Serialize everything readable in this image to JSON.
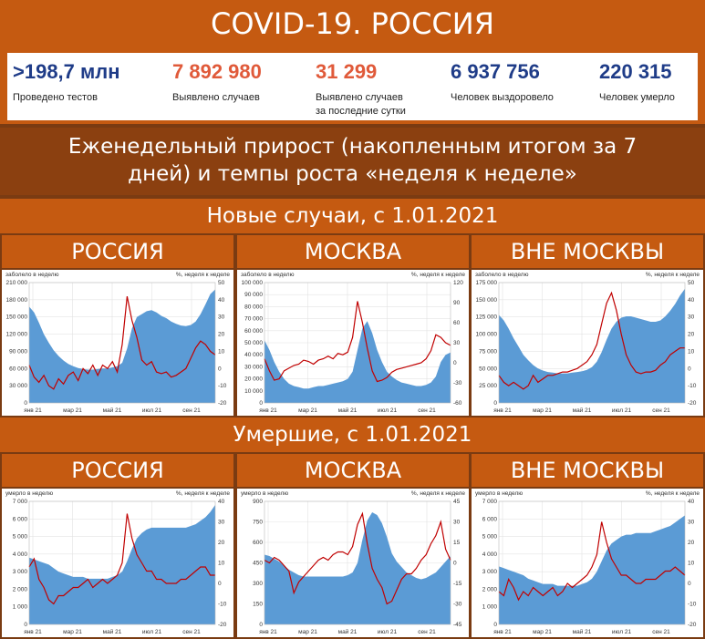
{
  "header": {
    "title": "COVID-19. РОССИЯ"
  },
  "stats": [
    {
      "value": ">198,7 млн",
      "label": "Проведено тестов",
      "color": "#1f3c88"
    },
    {
      "value": "7 892 980",
      "label": "Выявлено случаев",
      "color": "#e05a3a"
    },
    {
      "value": "31 299",
      "label": "Выявлено случаев за последние сутки",
      "label_line1": "Выявлено случаев",
      "label_line2": "за последние сутки",
      "color": "#e05a3a"
    },
    {
      "value": "6 937 756",
      "label": "Человек выздоровело",
      "color": "#1f3c88"
    },
    {
      "value": "220 315",
      "label": "Человек умерло",
      "color": "#1f3c88"
    }
  ],
  "subtitle": {
    "line1": "Еженедельный прирост (накопленным итогом за 7",
    "line2": "дней) и темпы роста «неделя к неделе»"
  },
  "sections": {
    "cases": "Новые случаи, с 1.01.2021",
    "deaths": "Умершие, с 1.01.2021"
  },
  "colors": {
    "area": "#5b9bd5",
    "line": "#c00000",
    "band": "#c55a11",
    "dark": "#7a3b12"
  },
  "chart_data": [
    {
      "type": "area+line",
      "panel": "РОССИЯ",
      "group": "cases",
      "ylabel": "заболело в неделю",
      "y2label": "%, неделя к неделе",
      "ylim": [
        0,
        210000
      ],
      "yticks": [
        0,
        30000,
        60000,
        90000,
        120000,
        150000,
        180000,
        210000
      ],
      "ytick_labels": [
        "0",
        "30 000",
        "60 000",
        "90 000",
        "120 000",
        "150 000",
        "180 000",
        "210 000"
      ],
      "y2lim": [
        -20,
        50
      ],
      "y2ticks": [
        -20,
        -10,
        0,
        10,
        20,
        30,
        40,
        50
      ],
      "xtick_labels": [
        "янв 21",
        "мар 21",
        "май 21",
        "июл 21",
        "сен 21"
      ],
      "series": [
        {
          "kind": "area",
          "values": [
            168000,
            158000,
            140000,
            120000,
            105000,
            92000,
            82000,
            74000,
            68000,
            64000,
            61000,
            59000,
            58000,
            58000,
            59000,
            60000,
            60000,
            62000,
            64000,
            70000,
            95000,
            130000,
            150000,
            155000,
            160000,
            162000,
            158000,
            152000,
            148000,
            142000,
            138000,
            135000,
            134000,
            136000,
            142000,
            155000,
            172000,
            190000,
            198000
          ]
        },
        {
          "kind": "line",
          "values": [
            2,
            -5,
            -8,
            -4,
            -10,
            -12,
            -6,
            -9,
            -4,
            -2,
            -7,
            0,
            -3,
            2,
            -4,
            2,
            0,
            4,
            -2,
            14,
            42,
            28,
            18,
            5,
            2,
            4,
            -2,
            -3,
            -2,
            -5,
            -4,
            -2,
            0,
            6,
            12,
            16,
            14,
            10,
            8
          ]
        }
      ]
    },
    {
      "type": "area+line",
      "panel": "МОСКВА",
      "group": "cases",
      "ylabel": "заболело в неделю",
      "y2label": "%, неделя к неделе",
      "ylim": [
        0,
        100000
      ],
      "yticks": [
        0,
        10000,
        20000,
        30000,
        40000,
        50000,
        60000,
        70000,
        80000,
        90000,
        100000
      ],
      "ytick_labels": [
        "0",
        "10 000",
        "20 000",
        "30 000",
        "40 000",
        "50 000",
        "60 000",
        "70 000",
        "80 000",
        "90 000",
        "100 000"
      ],
      "y2lim": [
        -60,
        120
      ],
      "y2ticks": [
        -60,
        -30,
        0,
        30,
        60,
        90,
        120
      ],
      "xtick_labels": [
        "янв 21",
        "мар 21",
        "май 21",
        "июл 21",
        "сен 21"
      ],
      "series": [
        {
          "kind": "area",
          "values": [
            52000,
            44000,
            34000,
            26000,
            20000,
            16000,
            14000,
            13000,
            12000,
            12000,
            13000,
            14000,
            14000,
            15000,
            16000,
            17000,
            18000,
            20000,
            26000,
            44000,
            62000,
            68000,
            58000,
            44000,
            34000,
            26000,
            22000,
            19000,
            17000,
            16000,
            15000,
            14000,
            14000,
            15000,
            17000,
            22000,
            34000,
            40000,
            42000
          ]
        },
        {
          "kind": "line",
          "values": [
            6,
            -12,
            -26,
            -24,
            -12,
            -8,
            -4,
            -2,
            4,
            2,
            -2,
            4,
            6,
            10,
            6,
            14,
            12,
            16,
            38,
            92,
            60,
            22,
            -12,
            -28,
            -26,
            -22,
            -14,
            -10,
            -8,
            -6,
            -4,
            -2,
            0,
            6,
            18,
            42,
            38,
            30,
            26
          ]
        }
      ]
    },
    {
      "type": "area+line",
      "panel": "ВНЕ МОСКВЫ",
      "group": "cases",
      "ylabel": "заболело в неделю",
      "y2label": "%, неделя к неделе",
      "ylim": [
        0,
        175000
      ],
      "yticks": [
        0,
        25000,
        50000,
        75000,
        100000,
        125000,
        150000,
        175000
      ],
      "ytick_labels": [
        "0",
        "25 000",
        "50 000",
        "75 000",
        "100 000",
        "125 000",
        "150 000",
        "175 000"
      ],
      "y2lim": [
        -20,
        50
      ],
      "y2ticks": [
        -20,
        -10,
        0,
        10,
        20,
        30,
        40,
        50
      ],
      "xtick_labels": [
        "янв 21",
        "мар 21",
        "май 21",
        "июл 21",
        "сен 21"
      ],
      "series": [
        {
          "kind": "area",
          "values": [
            128000,
            120000,
            108000,
            94000,
            82000,
            70000,
            62000,
            55000,
            50000,
            47000,
            45000,
            44000,
            43000,
            43000,
            43000,
            44000,
            45000,
            46000,
            48000,
            52000,
            60000,
            74000,
            92000,
            108000,
            118000,
            124000,
            126000,
            126000,
            124000,
            122000,
            120000,
            118000,
            118000,
            120000,
            126000,
            134000,
            144000,
            156000,
            166000
          ]
        },
        {
          "kind": "line",
          "values": [
            -4,
            -8,
            -10,
            -8,
            -10,
            -12,
            -10,
            -4,
            -8,
            -6,
            -4,
            -4,
            -3,
            -2,
            -2,
            -1,
            0,
            2,
            4,
            8,
            14,
            26,
            38,
            44,
            34,
            20,
            8,
            2,
            -2,
            -3,
            -2,
            -2,
            -1,
            2,
            4,
            8,
            10,
            12,
            12
          ]
        }
      ]
    },
    {
      "type": "area+line",
      "panel": "РОССИЯ",
      "group": "deaths",
      "ylabel": "умерло в неделю",
      "y2label": "%, неделя к неделе",
      "ylim": [
        0,
        7000
      ],
      "yticks": [
        0,
        1000,
        2000,
        3000,
        4000,
        5000,
        6000,
        7000
      ],
      "ytick_labels": [
        "0",
        "1 000",
        "2 000",
        "3 000",
        "4 000",
        "5 000",
        "6 000",
        "7 000"
      ],
      "y2lim": [
        -20,
        40
      ],
      "y2ticks": [
        -20,
        -10,
        0,
        10,
        20,
        30,
        40
      ],
      "xtick_labels": [
        "янв 21",
        "мар 21",
        "май 21",
        "июл 21",
        "сен 21"
      ],
      "series": [
        {
          "kind": "area",
          "values": [
            3800,
            3700,
            3600,
            3500,
            3400,
            3200,
            3000,
            2900,
            2800,
            2700,
            2700,
            2700,
            2600,
            2600,
            2600,
            2600,
            2600,
            2700,
            2800,
            3000,
            3600,
            4300,
            4900,
            5200,
            5400,
            5500,
            5500,
            5500,
            5500,
            5500,
            5500,
            5500,
            5500,
            5600,
            5700,
            5900,
            6100,
            6400,
            6800
          ]
        },
        {
          "kind": "line",
          "values": [
            8,
            12,
            2,
            -2,
            -8,
            -10,
            -6,
            -6,
            -4,
            -2,
            -2,
            0,
            2,
            -2,
            0,
            2,
            0,
            2,
            4,
            10,
            34,
            22,
            14,
            10,
            6,
            6,
            2,
            2,
            0,
            0,
            0,
            2,
            2,
            4,
            6,
            8,
            8,
            4,
            4
          ]
        }
      ]
    },
    {
      "type": "area+line",
      "panel": "МОСКВА",
      "group": "deaths",
      "ylabel": "умерло в неделю",
      "y2label": "%, неделя к неделе",
      "ylim": [
        0,
        900
      ],
      "yticks": [
        0,
        150,
        300,
        450,
        600,
        750,
        900
      ],
      "ytick_labels": [
        "0",
        "150",
        "300",
        "450",
        "600",
        "750",
        "900"
      ],
      "y2lim": [
        -45,
        45
      ],
      "y2ticks": [
        -45,
        -30,
        -15,
        0,
        15,
        30,
        45
      ],
      "xtick_labels": [
        "янв 21",
        "мар 21",
        "май 21",
        "июл 21",
        "сен 21"
      ],
      "series": [
        {
          "kind": "area",
          "values": [
            510,
            500,
            480,
            460,
            430,
            400,
            380,
            360,
            350,
            350,
            350,
            350,
            350,
            350,
            350,
            350,
            350,
            360,
            380,
            450,
            620,
            760,
            820,
            800,
            740,
            640,
            520,
            460,
            420,
            380,
            360,
            340,
            330,
            340,
            360,
            380,
            420,
            460,
            500
          ]
        },
        {
          "kind": "line",
          "values": [
            2,
            0,
            4,
            2,
            -2,
            -6,
            -22,
            -14,
            -10,
            -6,
            -2,
            2,
            4,
            2,
            6,
            8,
            8,
            6,
            12,
            28,
            36,
            14,
            -4,
            -12,
            -18,
            -30,
            -28,
            -20,
            -12,
            -8,
            -8,
            -4,
            2,
            6,
            14,
            20,
            30,
            10,
            2
          ]
        }
      ]
    },
    {
      "type": "area+line",
      "panel": "ВНЕ МОСКВЫ",
      "group": "deaths",
      "ylabel": "умерло в неделю",
      "y2label": "%, неделя к неделе",
      "ylim": [
        0,
        7000
      ],
      "yticks": [
        0,
        1000,
        2000,
        3000,
        4000,
        5000,
        6000,
        7000
      ],
      "ytick_labels": [
        "0",
        "1 000",
        "2 000",
        "3 000",
        "4 000",
        "5 000",
        "6 000",
        "7 000"
      ],
      "y2lim": [
        -20,
        40
      ],
      "y2ticks": [
        -20,
        -10,
        0,
        10,
        20,
        30,
        40
      ],
      "xtick_labels": [
        "янв 21",
        "мар 21",
        "май 21",
        "июл 21",
        "сен 21"
      ],
      "series": [
        {
          "kind": "area",
          "values": [
            3300,
            3200,
            3100,
            3000,
            2900,
            2800,
            2600,
            2500,
            2400,
            2300,
            2300,
            2300,
            2200,
            2200,
            2200,
            2200,
            2200,
            2300,
            2400,
            2600,
            3000,
            3600,
            4200,
            4600,
            4800,
            5000,
            5100,
            5100,
            5200,
            5200,
            5200,
            5200,
            5300,
            5400,
            5500,
            5600,
            5800,
            6000,
            6200
          ]
        },
        {
          "kind": "line",
          "values": [
            -4,
            -6,
            2,
            -2,
            -8,
            -4,
            -6,
            -2,
            -4,
            -6,
            -4,
            -2,
            -6,
            -4,
            0,
            -2,
            0,
            2,
            4,
            8,
            14,
            30,
            20,
            12,
            8,
            4,
            4,
            2,
            0,
            0,
            2,
            2,
            2,
            4,
            6,
            6,
            8,
            6,
            4
          ]
        }
      ]
    }
  ]
}
